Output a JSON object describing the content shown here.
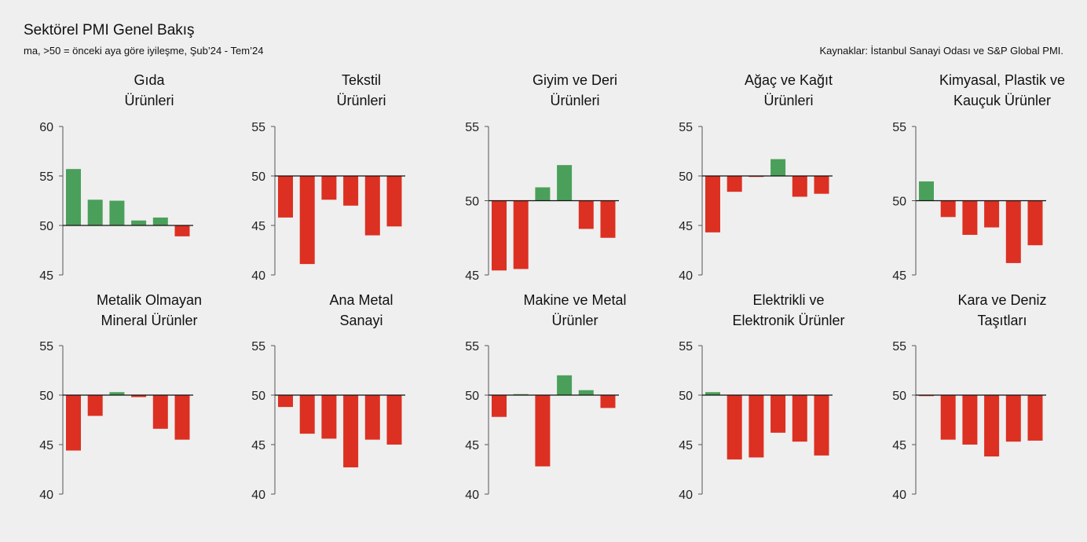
{
  "header": {
    "title": "Sektörel PMI Genel Bakış",
    "subtitle": "ma, >50 = önceki aya göre iyileşme, Şub’24 - Tem’24",
    "source": "Kaynaklar: İstanbul Sanayi Odası ve S&P Global PMI."
  },
  "colors": {
    "positive": "#4aa05a",
    "negative": "#dc3022",
    "axis": "#555555",
    "baseline": "#111111"
  },
  "chart_data": [
    {
      "type": "bar",
      "title_lines": [
        "Gıda",
        "Ürünleri"
      ],
      "ylim": [
        45,
        60
      ],
      "yticks": [
        45,
        50,
        55,
        60
      ],
      "baseline": 50,
      "values": [
        55.7,
        52.6,
        52.5,
        50.5,
        50.8,
        48.9
      ]
    },
    {
      "type": "bar",
      "title_lines": [
        "Tekstil",
        "Ürünleri"
      ],
      "ylim": [
        40,
        55
      ],
      "yticks": [
        40,
        45,
        50,
        55
      ],
      "baseline": 50,
      "values": [
        45.8,
        41.1,
        47.6,
        47.0,
        44.0,
        44.9
      ]
    },
    {
      "type": "bar",
      "title_lines": [
        "Giyim ve Deri",
        "Ürünleri"
      ],
      "ylim": [
        45,
        55
      ],
      "yticks": [
        45,
        50,
        55
      ],
      "baseline": 50,
      "values": [
        45.3,
        45.4,
        50.9,
        52.4,
        48.1,
        47.5
      ]
    },
    {
      "type": "bar",
      "title_lines": [
        "Ağaç ve Kağıt",
        "Ürünleri"
      ],
      "ylim": [
        40,
        55
      ],
      "yticks": [
        40,
        45,
        50,
        55
      ],
      "baseline": 50,
      "values": [
        44.3,
        48.4,
        49.9,
        51.7,
        47.9,
        48.2
      ]
    },
    {
      "type": "bar",
      "title_lines": [
        "Kimyasal, Plastik ve",
        "Kauçuk Ürünler"
      ],
      "ylim": [
        45,
        55
      ],
      "yticks": [
        45,
        50,
        55
      ],
      "baseline": 50,
      "values": [
        51.3,
        48.9,
        47.7,
        48.2,
        45.8,
        47.0
      ]
    },
    {
      "type": "bar",
      "title_lines": [
        "Metalik Olmayan",
        "Mineral Ürünler"
      ],
      "ylim": [
        40,
        55
      ],
      "yticks": [
        40,
        45,
        50,
        55
      ],
      "baseline": 50,
      "values": [
        44.4,
        47.9,
        50.3,
        49.8,
        46.6,
        45.5
      ]
    },
    {
      "type": "bar",
      "title_lines": [
        "Ana Metal",
        "Sanayi"
      ],
      "ylim": [
        40,
        55
      ],
      "yticks": [
        40,
        45,
        50,
        55
      ],
      "baseline": 50,
      "values": [
        48.8,
        46.1,
        45.6,
        42.7,
        45.5,
        45.0
      ]
    },
    {
      "type": "bar",
      "title_lines": [
        "Makine ve Metal",
        "Ürünler"
      ],
      "ylim": [
        40,
        55
      ],
      "yticks": [
        40,
        45,
        50,
        55
      ],
      "baseline": 50,
      "values": [
        47.8,
        50.1,
        42.8,
        52.0,
        50.5,
        48.7
      ]
    },
    {
      "type": "bar",
      "title_lines": [
        "Elektrikli ve",
        "Elektronik Ürünler"
      ],
      "ylim": [
        40,
        55
      ],
      "yticks": [
        40,
        45,
        50,
        55
      ],
      "baseline": 50,
      "values": [
        50.3,
        43.5,
        43.7,
        46.2,
        45.3,
        43.9
      ]
    },
    {
      "type": "bar",
      "title_lines": [
        "Kara ve Deniz",
        "Taşıtları"
      ],
      "ylim": [
        40,
        55
      ],
      "yticks": [
        40,
        45,
        50,
        55
      ],
      "baseline": 50,
      "values": [
        49.9,
        45.5,
        45.0,
        43.8,
        45.3,
        45.4
      ]
    }
  ]
}
